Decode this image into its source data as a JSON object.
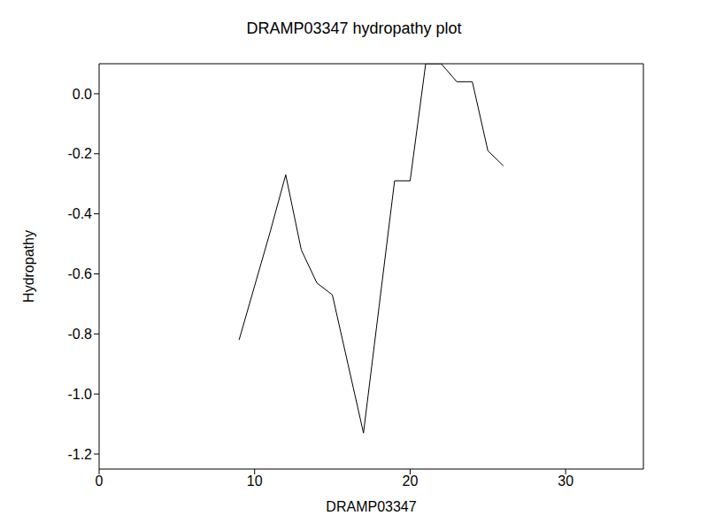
{
  "chart_data": {
    "type": "line",
    "title": "DRAMP03347 hydropathy plot",
    "x_label": "DRAMP03347",
    "y_label": "Hydropathy",
    "x": [
      9,
      10,
      11,
      12,
      13,
      14,
      15,
      16,
      17,
      18,
      19,
      20,
      21,
      22,
      23,
      24,
      25,
      26
    ],
    "values": [
      -0.82,
      -0.64,
      -0.46,
      -0.27,
      -0.52,
      -0.63,
      -0.67,
      -0.9,
      -1.13,
      -0.71,
      -0.29,
      -0.29,
      0.1,
      0.1,
      0.04,
      0.04,
      -0.19,
      -0.24
    ],
    "color": "#000000",
    "xlim": [
      0,
      35
    ],
    "xticks": [
      0,
      10,
      20,
      30
    ],
    "ylim": [
      -1.25,
      0.1
    ],
    "yticks": [
      {
        "value": 0,
        "label": "0.0"
      },
      {
        "value": -0.2,
        "label": "-0.2"
      },
      {
        "value": -0.4,
        "label": "-0.4"
      },
      {
        "value": -0.6,
        "label": "-0.6"
      },
      {
        "value": -0.8,
        "label": "-0.8"
      },
      {
        "value": -1,
        "label": "-1.0"
      },
      {
        "value": -1.2,
        "label": "-1.2"
      }
    ],
    "grid": false
  }
}
